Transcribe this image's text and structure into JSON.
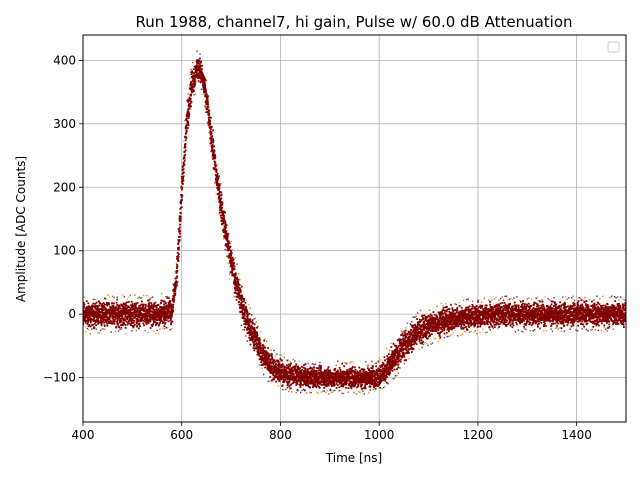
{
  "chart_data": {
    "type": "scatter",
    "title": "Run 1988, channel7, hi gain, Pulse w/ 60.0 dB Attenuation",
    "xlabel": "Time [ns]",
    "ylabel": "Amplitude [ADC Counts]",
    "xlim": [
      400,
      1500
    ],
    "ylim": [
      -170,
      440
    ],
    "xticks": [
      400,
      600,
      800,
      1000,
      1200,
      1400
    ],
    "yticks": [
      -100,
      0,
      100,
      200,
      300,
      400
    ],
    "xtick_labels": [
      "400",
      "600",
      "800",
      "1000",
      "1200",
      "1400"
    ],
    "ytick_labels": [
      "−100",
      "0",
      "100",
      "200",
      "300",
      "400"
    ],
    "grid": true,
    "legend": {
      "placement": "top-right",
      "entries": []
    },
    "colors": {
      "band": "#800000",
      "speckle": [
        "#4b2a7a",
        "#c86418",
        "#e8a030"
      ]
    },
    "series": [
      {
        "x": [
          400,
          450,
          500,
          550,
          580,
          590,
          600,
          610,
          620,
          630,
          635,
          640,
          650,
          660,
          670,
          680,
          690,
          700,
          710,
          720,
          730,
          740,
          750,
          760,
          770,
          780,
          790,
          800,
          820,
          840,
          860,
          880,
          900,
          920,
          940,
          960,
          980,
          1000,
          1020,
          1040,
          1060,
          1080,
          1100,
          1120,
          1150,
          1200,
          1250,
          1300,
          1350,
          1400,
          1450,
          1500
        ],
        "y": [
          0,
          0,
          0,
          0,
          5,
          60,
          190,
          300,
          360,
          385,
          388,
          380,
          340,
          280,
          220,
          170,
          125,
          85,
          50,
          20,
          -5,
          -25,
          -42,
          -58,
          -70,
          -80,
          -87,
          -92,
          -96,
          -98,
          -100,
          -100,
          -100,
          -100,
          -100,
          -100,
          -100,
          -97,
          -82,
          -60,
          -42,
          -28,
          -18,
          -12,
          -7,
          -3,
          0,
          0,
          0,
          0,
          0,
          0
        ],
        "band_halfwidth": [
          24,
          24,
          24,
          24,
          24,
          28,
          30,
          30,
          28,
          25,
          22,
          22,
          24,
          26,
          28,
          28,
          28,
          28,
          28,
          28,
          27,
          26,
          25,
          25,
          24,
          24,
          22,
          22,
          22,
          20,
          20,
          20,
          20,
          20,
          20,
          20,
          20,
          22,
          25,
          26,
          25,
          25,
          24,
          24,
          22,
          22,
          22,
          22,
          22,
          22,
          22,
          22
        ]
      }
    ]
  }
}
